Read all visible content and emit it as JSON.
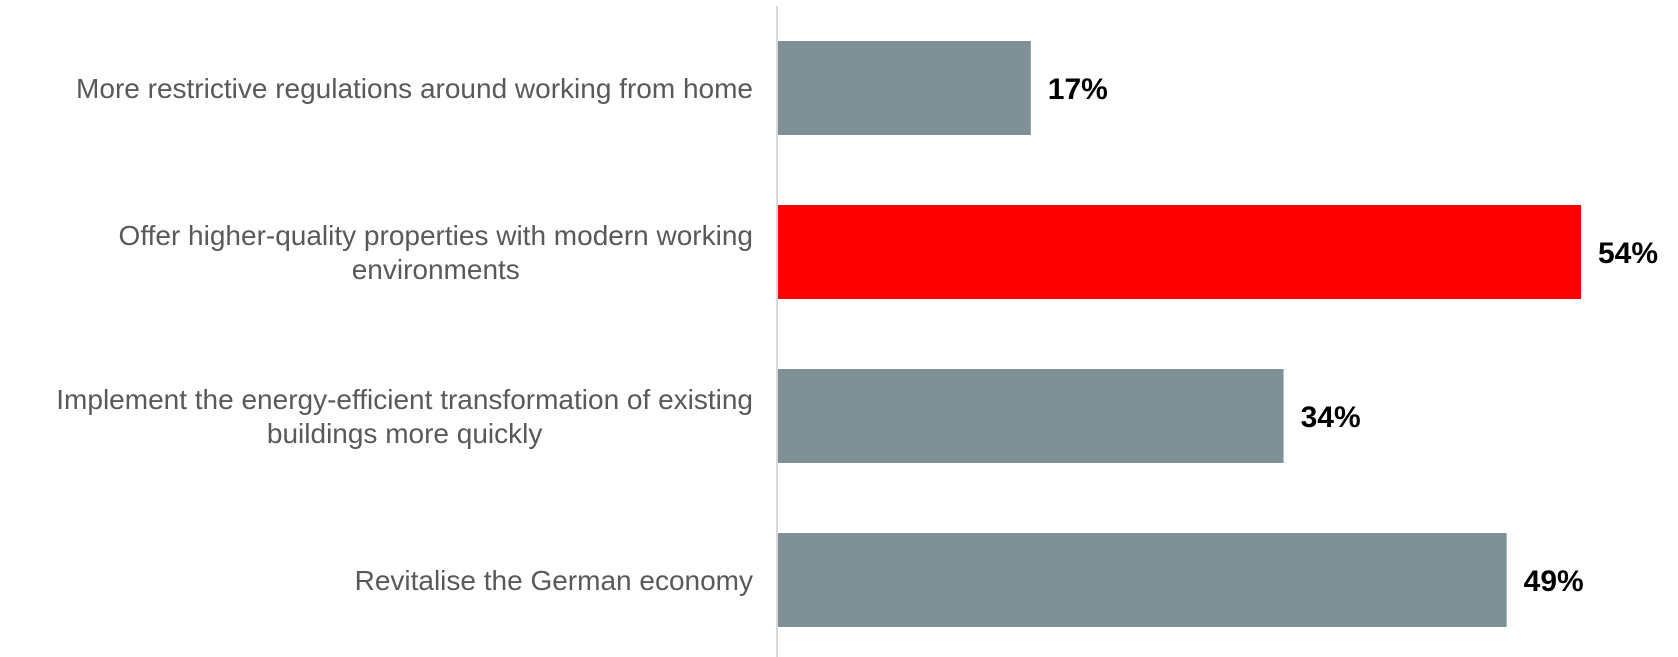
{
  "chart_data": {
    "type": "bar",
    "orientation": "horizontal",
    "categories": [
      "More restrictive regulations around working from home",
      "Offer higher-quality properties with modern working environments",
      "Implement the energy-efficient transformation of existing buildings more quickly",
      "Revitalise the German economy"
    ],
    "category_lines": [
      [
        "More restrictive regulations around working from home"
      ],
      [
        "Offer higher-quality properties with modern working",
        "environments"
      ],
      [
        "Implement the energy-efficient transformation of existing",
        "buildings more quickly"
      ],
      [
        "Revitalise the German economy"
      ]
    ],
    "values": [
      17,
      54,
      34,
      49
    ],
    "value_labels": [
      "17%",
      "54%",
      "34%",
      "49%"
    ],
    "unit": "%",
    "title": "",
    "xlabel": "",
    "ylabel": "",
    "xlim": [
      0,
      54
    ],
    "grid": false,
    "legend": "none",
    "colors": {
      "default_bar": "#7f9097",
      "highlight_bar": "#ff0000",
      "axis_line": "#d9d9d9",
      "category_text": "#595959",
      "value_text": "#000000"
    },
    "highlight_index": 1
  }
}
